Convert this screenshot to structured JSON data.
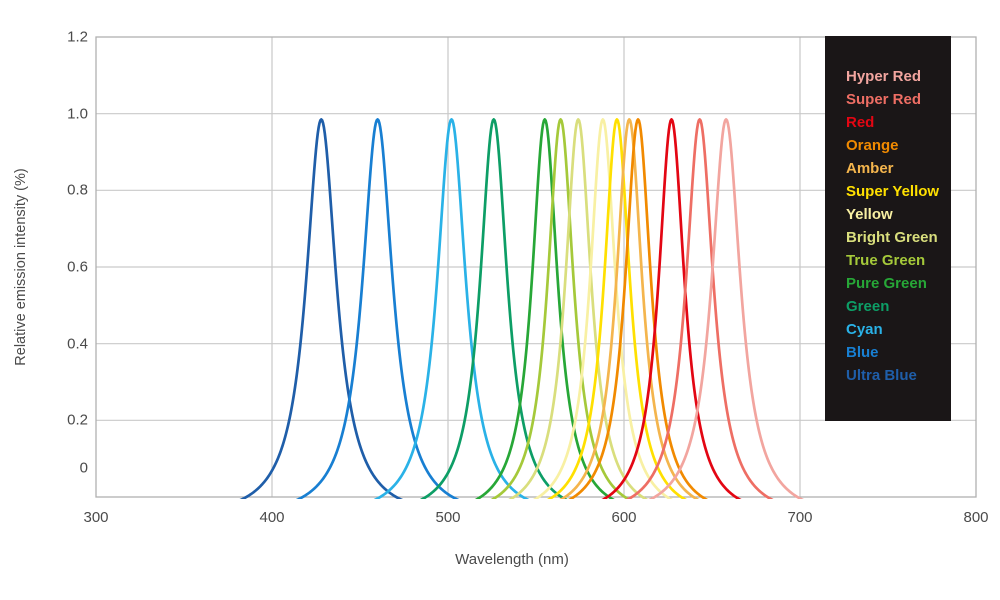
{
  "chart_data": {
    "type": "line",
    "title": "",
    "xlabel": "Wavelength (nm)",
    "ylabel": "Relative emission intensity (%)",
    "xlim": [
      300,
      800
    ],
    "ylim": [
      0,
      1.2
    ],
    "grid": true,
    "x_ticks": [
      {
        "label": "300",
        "value": 300
      },
      {
        "label": "400",
        "value": 400
      },
      {
        "label": "500",
        "value": 500
      },
      {
        "label": "600",
        "value": 600
      },
      {
        "label": "700",
        "value": 700
      },
      {
        "label": "800",
        "value": 800
      }
    ],
    "y_ticks": [
      {
        "label": "1.2",
        "value": 1.2
      },
      {
        "label": "1.0",
        "value": 1.0
      },
      {
        "label": "0.8",
        "value": 0.8
      },
      {
        "label": "0.6",
        "value": 0.6
      },
      {
        "label": "0.4",
        "value": 0.4
      },
      {
        "label": "0.2",
        "value": 0.2
      },
      {
        "label": "0",
        "value": 0
      }
    ],
    "curve_model": {
      "shape": "lorentzian",
      "amplitude": 1.045,
      "baseline": -0.06,
      "peak_intensity": 0.985
    },
    "series": [
      {
        "name": "Hyper Red",
        "peak_nm": 658,
        "peak_intensity": 0.985,
        "hwhm_nm": 10,
        "color": "#f2a59f"
      },
      {
        "name": "Super Red",
        "peak_nm": 643,
        "peak_intensity": 0.985,
        "hwhm_nm": 9.5,
        "color": "#ee6e64"
      },
      {
        "name": "Red",
        "peak_nm": 627,
        "peak_intensity": 0.985,
        "hwhm_nm": 9,
        "color": "#e30613"
      },
      {
        "name": "Orange",
        "peak_nm": 608,
        "peak_intensity": 0.985,
        "hwhm_nm": 9,
        "color": "#f18a00"
      },
      {
        "name": "Amber",
        "peak_nm": 603,
        "peak_intensity": 0.985,
        "hwhm_nm": 9,
        "color": "#f4b54d"
      },
      {
        "name": "Super Yellow",
        "peak_nm": 596,
        "peak_intensity": 0.985,
        "hwhm_nm": 9,
        "color": "#ffe000"
      },
      {
        "name": "Yellow",
        "peak_nm": 588,
        "peak_intensity": 0.985,
        "hwhm_nm": 9,
        "color": "#f8f0a3"
      },
      {
        "name": "Bright Green",
        "peak_nm": 574,
        "peak_intensity": 0.985,
        "hwhm_nm": 9,
        "color": "#d9de7d"
      },
      {
        "name": "True Green",
        "peak_nm": 564,
        "peak_intensity": 0.985,
        "hwhm_nm": 9,
        "color": "#a5c93a"
      },
      {
        "name": "Pure Green",
        "peak_nm": 555,
        "peak_intensity": 0.985,
        "hwhm_nm": 9,
        "color": "#27a737"
      },
      {
        "name": "Green",
        "peak_nm": 526,
        "peak_intensity": 0.985,
        "hwhm_nm": 9.5,
        "color": "#0d9e66"
      },
      {
        "name": "Cyan",
        "peak_nm": 502,
        "peak_intensity": 0.985,
        "hwhm_nm": 10,
        "color": "#2ab2e7"
      },
      {
        "name": "Blue",
        "peak_nm": 460,
        "peak_intensity": 0.985,
        "hwhm_nm": 10.5,
        "color": "#187fd2"
      },
      {
        "name": "Ultra Blue",
        "peak_nm": 428,
        "peak_intensity": 0.985,
        "hwhm_nm": 10.5,
        "color": "#1f5ea9"
      }
    ],
    "legend_position": "top-right",
    "legend_background": "#1a1617"
  }
}
